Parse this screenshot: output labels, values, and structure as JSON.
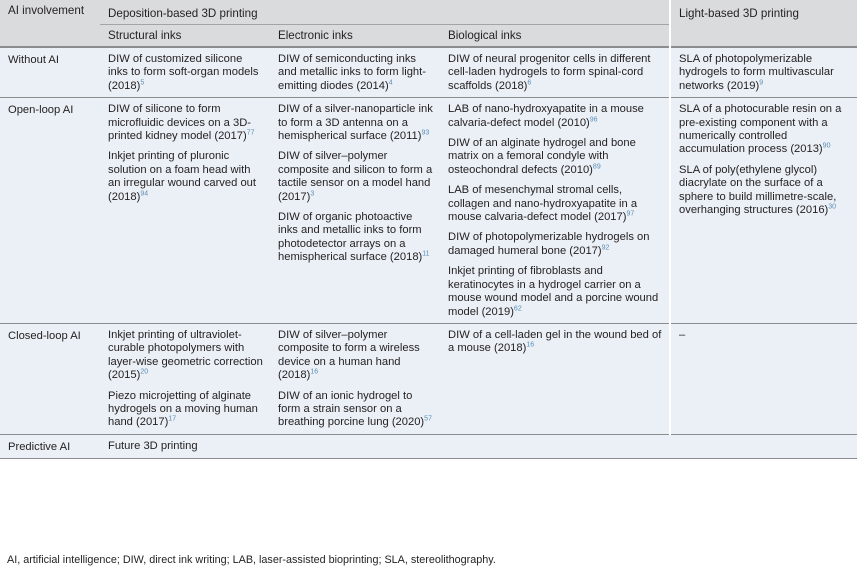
{
  "headers": {
    "ai_involvement": "AI involvement",
    "deposition": "Deposition-based 3D printing",
    "light": "Light-based 3D printing",
    "structural": "Structural inks",
    "electronic": "Electronic inks",
    "biological": "Biological inks"
  },
  "rows": {
    "without_ai": {
      "label": "Without AI",
      "structural": [
        {
          "text": "DIW of customized silicone inks to form soft-organ models (2018)",
          "ref": "5"
        }
      ],
      "electronic": [
        {
          "text": "DIW of semiconducting inks and metallic inks to form light-emitting diodes (2014)",
          "ref": "4"
        }
      ],
      "biological": [
        {
          "text": "DIW of neural progenitor cells in different cell-laden hydrogels to form spinal-cord scaffolds (2018)",
          "ref": "6"
        }
      ],
      "light": [
        {
          "text": "SLA of photopolymerizable hydrogels to form multivascular networks (2019)",
          "ref": "9"
        }
      ]
    },
    "open_loop": {
      "label": "Open-loop AI",
      "structural": [
        {
          "text": "DIW of silicone to form microfluidic devices on a 3D-printed kidney model (2017)",
          "ref": "77"
        },
        {
          "text": "Inkjet printing of pluronic solution on a foam head with an irregular wound carved out (2018)",
          "ref": "94"
        }
      ],
      "electronic": [
        {
          "text": "DIW of a silver-nanoparticle ink to form a 3D antenna on a hemispherical surface (2011)",
          "ref": "93"
        },
        {
          "text": "DIW of silver–polymer composite and silicon to form a tactile sensor on a model hand (2017)",
          "ref": "3"
        },
        {
          "text": "DIW of organic photoactive inks and metallic inks to form photodetector arrays on a hemispherical surface (2018)",
          "ref": "11"
        }
      ],
      "biological": [
        {
          "text": "LAB of nano-hydroxyapatite in a mouse calvaria-defect model (2010)",
          "ref": "96"
        },
        {
          "text": "DIW of an alginate hydrogel and bone matrix on a femoral condyle with osteochondral defects (2010)",
          "ref": "89"
        },
        {
          "text": "LAB of mesenchymal stromal cells, collagen and nano-hydroxyapatite in a mouse calvaria-defect model (2017)",
          "ref": "97"
        },
        {
          "text": "DIW of photopolymerizable hydrogels on damaged humeral bone (2017)",
          "ref": "92"
        },
        {
          "text": "Inkjet printing of fibroblasts and keratinocytes in a hydrogel carrier on a mouse wound model and a porcine wound model (2019)",
          "ref": "62"
        }
      ],
      "light": [
        {
          "text": "SLA of a photocurable resin on a pre-existing component with a numerically controlled accumulation process (2013)",
          "ref": "90"
        },
        {
          "text": "SLA of poly(ethylene glycol) diacrylate on the surface of a sphere to build millimetre-scale, overhanging structures (2016)",
          "ref": "30"
        }
      ]
    },
    "closed_loop": {
      "label": "Closed-loop AI",
      "structural": [
        {
          "text": "Inkjet printing of ultraviolet-curable photopolymers with layer-wise geometric correction (2015)",
          "ref": "20"
        },
        {
          "text": "Piezo microjetting of alginate hydrogels on a moving human hand (2017)",
          "ref": "17"
        }
      ],
      "electronic": [
        {
          "text": "DIW of silver–polymer composite to form a wireless device on a human hand (2018)",
          "ref": "16"
        },
        {
          "text": "DIW of an ionic hydrogel to form a strain sensor on a breathing porcine lung (2020)",
          "ref": "57"
        }
      ],
      "biological": [
        {
          "text": "DIW of a cell-laden gel in the wound bed of a mouse (2018)",
          "ref": "16"
        }
      ],
      "light": [
        {
          "text": "–",
          "ref": ""
        }
      ]
    },
    "predictive": {
      "label": "Predictive AI",
      "value": "Future 3D printing"
    }
  },
  "footnote": "AI, artificial intelligence; DIW, direct ink writing; LAB, laser-assisted bioprinting; SLA, stereolithography."
}
